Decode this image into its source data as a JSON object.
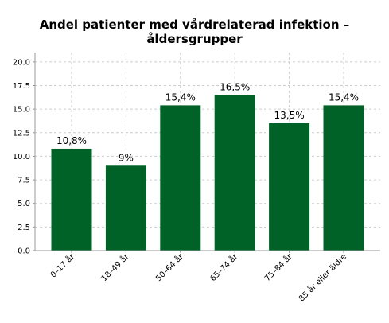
{
  "chart_data": {
    "type": "bar",
    "title_lines": [
      "Andel patienter  med vårdrelaterad infektion –",
      "åldersgrupper"
    ],
    "categories": [
      "0–17 år",
      "18–49 år",
      "50–64 år",
      "65–74 år",
      "75–84 år",
      "85 år eller äldre"
    ],
    "values": [
      10.8,
      9,
      15.4,
      16.5,
      13.5,
      15.4
    ],
    "data_labels": [
      "10,8%",
      "9%",
      "15,4%",
      "16,5%",
      "13,5%",
      "15,4%"
    ],
    "yticks": [
      "0.0",
      "2.5",
      "5.0",
      "7.5",
      "10.0",
      "12.5",
      "15.0",
      "17.5",
      "20.0"
    ],
    "ylim": [
      0,
      21
    ],
    "xlabel": "",
    "ylabel": "",
    "grid": true,
    "bar_color": "#006227",
    "grid_color": "#cccccc",
    "axis_color": "#999999"
  }
}
